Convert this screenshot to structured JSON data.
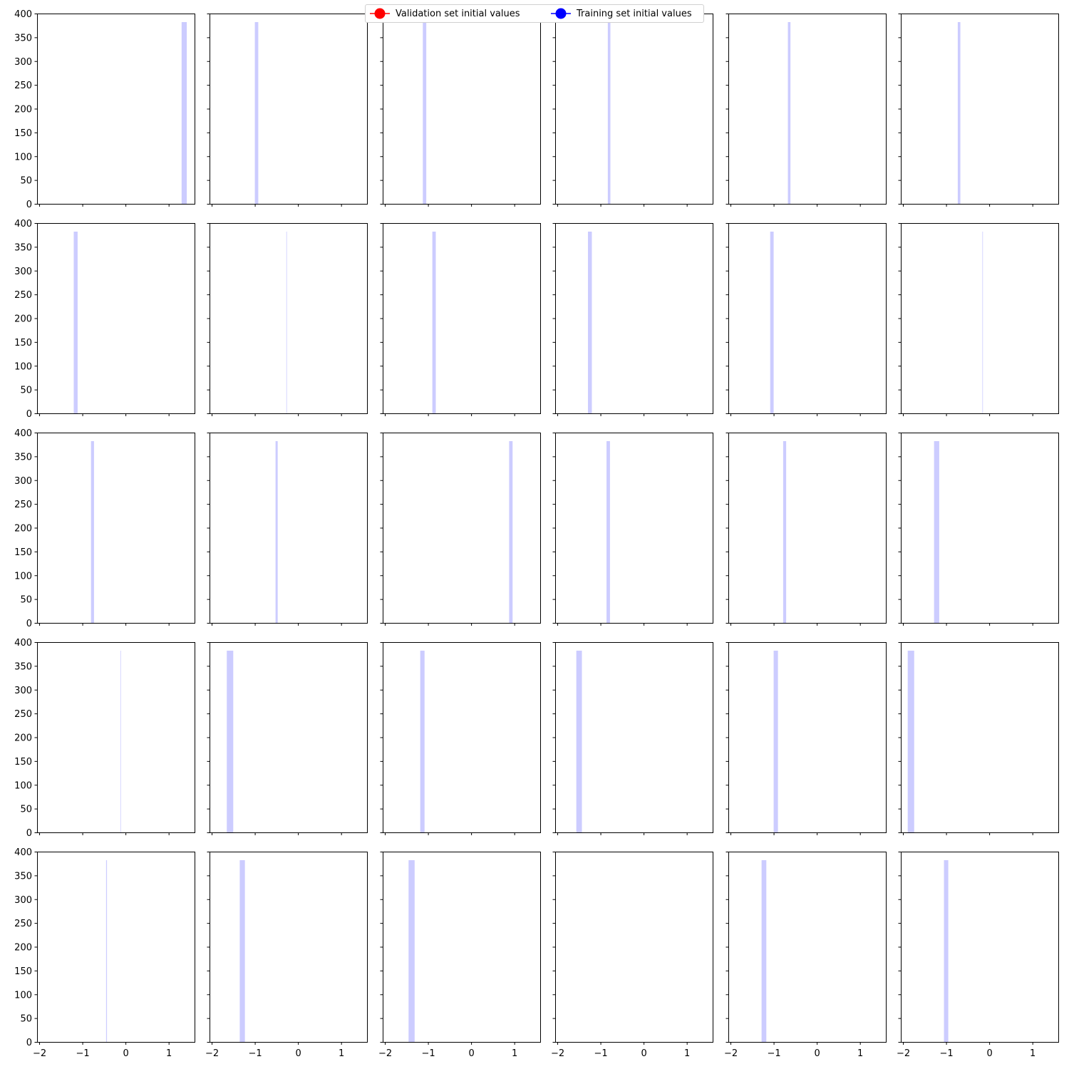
{
  "legend": {
    "entries": [
      {
        "label": "Validation set initial values",
        "color": "#ff0000",
        "icon": "red-circle-marker"
      },
      {
        "label": "Training set initial values",
        "color": "#0000ff",
        "icon": "blue-circle-marker"
      }
    ]
  },
  "chart_data": {
    "type": "histogram-grid",
    "rows": 5,
    "cols": 6,
    "sharex": true,
    "sharey": true,
    "xlim": [
      -2.05,
      1.6
    ],
    "ylim": [
      0,
      400
    ],
    "xticks": [
      -2,
      -1,
      0,
      1
    ],
    "xtick_labels": [
      "−2",
      "−1",
      "0",
      "1"
    ],
    "yticks": [
      0,
      50,
      100,
      150,
      200,
      250,
      300,
      350,
      400
    ],
    "ytick_labels": [
      "0",
      "50",
      "100",
      "150",
      "200",
      "250",
      "300",
      "350",
      "400"
    ],
    "bar_color": "#ccccff",
    "bin_count": 382,
    "panels": [
      {
        "bin_start": 1.3,
        "bin_end": 1.42
      },
      {
        "bin_start": -1.0,
        "bin_end": -0.92
      },
      {
        "bin_start": -1.12,
        "bin_end": -1.04
      },
      {
        "bin_start": -0.83,
        "bin_end": -0.77
      },
      {
        "bin_start": -0.67,
        "bin_end": -0.61
      },
      {
        "bin_start": -0.73,
        "bin_end": -0.67
      },
      {
        "bin_start": -1.2,
        "bin_end": -1.11
      },
      {
        "bin_start": -0.27,
        "bin_end": -0.26
      },
      {
        "bin_start": -0.9,
        "bin_end": -0.82
      },
      {
        "bin_start": -1.29,
        "bin_end": -1.2
      },
      {
        "bin_start": -1.08,
        "bin_end": -1.0
      },
      {
        "bin_start": -0.16,
        "bin_end": -0.15
      },
      {
        "bin_start": -0.8,
        "bin_end": -0.73
      },
      {
        "bin_start": -0.52,
        "bin_end": -0.47
      },
      {
        "bin_start": 0.88,
        "bin_end": 0.96
      },
      {
        "bin_start": -0.86,
        "bin_end": -0.78
      },
      {
        "bin_start": -0.78,
        "bin_end": -0.71
      },
      {
        "bin_start": -1.28,
        "bin_end": -1.16
      },
      {
        "bin_start": -0.12,
        "bin_end": -0.11
      },
      {
        "bin_start": -1.65,
        "bin_end": -1.5
      },
      {
        "bin_start": -1.18,
        "bin_end": -1.08
      },
      {
        "bin_start": -1.56,
        "bin_end": -1.43
      },
      {
        "bin_start": -1.0,
        "bin_end": -0.9
      },
      {
        "bin_start": -1.89,
        "bin_end": -1.74
      },
      {
        "bin_start": -0.45,
        "bin_end": -0.43
      },
      {
        "bin_start": -1.35,
        "bin_end": -1.23
      },
      {
        "bin_start": -1.45,
        "bin_end": -1.31
      },
      null,
      {
        "bin_start": -1.28,
        "bin_end": -1.17
      },
      {
        "bin_start": -1.05,
        "bin_end": -0.95
      }
    ]
  }
}
